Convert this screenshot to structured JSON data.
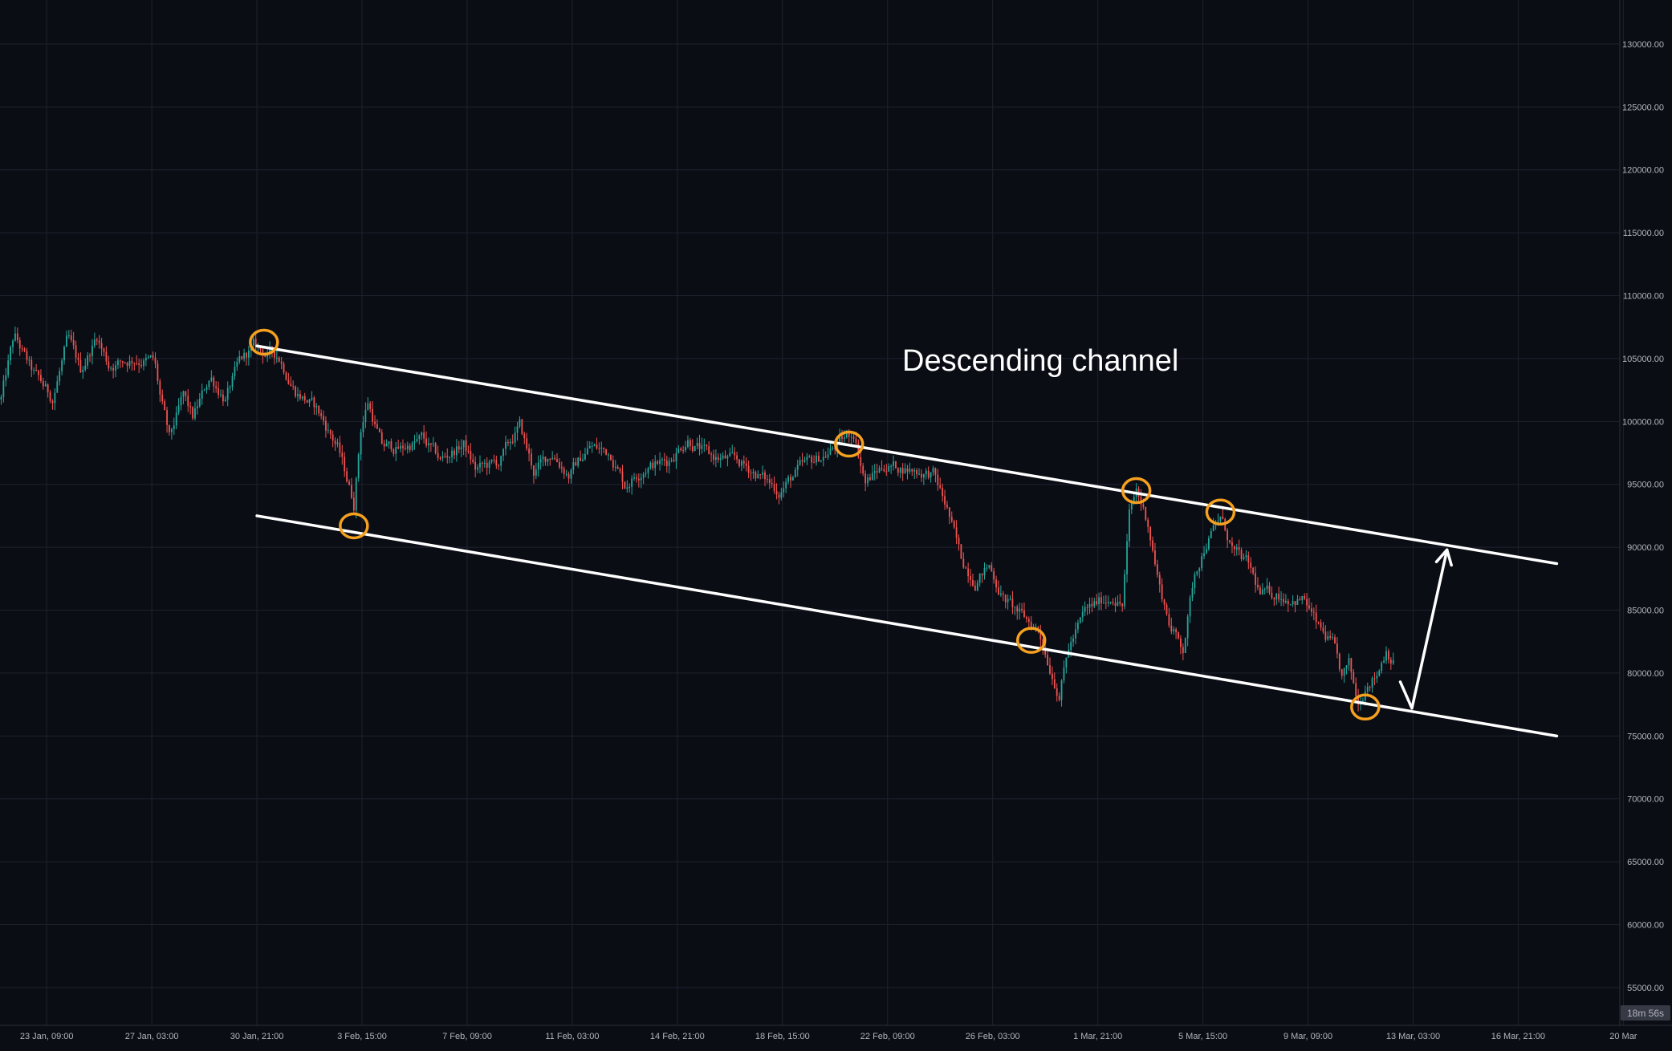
{
  "chart_data": {
    "type": "candlestick",
    "annotation_text": "Descending channel",
    "countdown": "18m 56s",
    "x_tick_labels": [
      "23 Jan, 09:00",
      "27 Jan, 03:00",
      "30 Jan, 21:00",
      "3 Feb, 15:00",
      "7 Feb, 09:00",
      "11 Feb, 03:00",
      "14 Feb, 21:00",
      "18 Feb, 15:00",
      "22 Feb, 09:00",
      "26 Feb, 03:00",
      "1 Mar, 21:00",
      "5 Mar, 15:00",
      "9 Mar, 09:00",
      "13 Mar, 03:00",
      "16 Mar, 21:00",
      "20 Mar"
    ],
    "y_tick_labels": [
      "130000.00",
      "125000.00",
      "120000.00",
      "115000.00",
      "110000.00",
      "105000.00",
      "100000.00",
      "95000.00",
      "90000.00",
      "85000.00",
      "80000.00",
      "75000.00",
      "70000.00",
      "65000.00",
      "60000.00",
      "55000.00"
    ],
    "y_ticks": [
      130000,
      125000,
      120000,
      115000,
      110000,
      105000,
      100000,
      95000,
      90000,
      85000,
      80000,
      75000,
      70000,
      65000,
      60000,
      55000
    ],
    "x_range": [
      "2025-01-21T17:00",
      "2025-03-20T12:00"
    ],
    "y_range": [
      52000,
      133500
    ],
    "grid": true,
    "colors": {
      "up": "#26a69a",
      "down": "#ef5350",
      "lines": "#ffffff",
      "markers": "#f5a11f",
      "background": "#0b0d15",
      "grid": "#1f222e"
    },
    "price_path": [
      [
        "2025-01-21T18:00",
        101800
      ],
      [
        "2025-01-22T05:00",
        106800
      ],
      [
        "2025-01-22T20:00",
        104000
      ],
      [
        "2025-01-23T14:00",
        101800
      ],
      [
        "2025-01-24T03:00",
        106500
      ],
      [
        "2025-01-24T14:00",
        104000
      ],
      [
        "2025-01-25T04:00",
        106800
      ],
      [
        "2025-01-25T14:00",
        104500
      ],
      [
        "2025-01-26T12:00",
        105000
      ],
      [
        "2025-01-27T05:00",
        104800
      ],
      [
        "2025-01-27T10:00",
        102000
      ],
      [
        "2025-01-27T18:00",
        98500
      ],
      [
        "2025-01-28T06:00",
        102000
      ],
      [
        "2025-01-28T14:00",
        100200
      ],
      [
        "2025-01-29T05:00",
        103600
      ],
      [
        "2025-01-29T18:00",
        101800
      ],
      [
        "2025-01-30T06:00",
        104600
      ],
      [
        "2025-01-30T18:00",
        105900
      ],
      [
        "2025-01-31T06:00",
        105300
      ],
      [
        "2025-01-31T15:00",
        105300
      ],
      [
        "2025-02-01T06:00",
        102500
      ],
      [
        "2025-02-02T00:00",
        101000
      ],
      [
        "2025-02-02T18:00",
        98000
      ],
      [
        "2025-02-03T08:00",
        93500
      ],
      [
        "2025-02-03T14:00",
        99500
      ],
      [
        "2025-02-03T20:00",
        101600
      ],
      [
        "2025-02-04T08:00",
        98000
      ],
      [
        "2025-02-05T00:00",
        97800
      ],
      [
        "2025-02-05T18:00",
        98600
      ],
      [
        "2025-02-06T10:00",
        96900
      ],
      [
        "2025-02-07T06:00",
        98200
      ],
      [
        "2025-02-07T16:00",
        96200
      ],
      [
        "2025-02-08T12:00",
        96700
      ],
      [
        "2025-02-09T06:00",
        99600
      ],
      [
        "2025-02-09T18:00",
        96000
      ],
      [
        "2025-02-10T10:00",
        97500
      ],
      [
        "2025-02-11T00:00",
        95800
      ],
      [
        "2025-02-11T18:00",
        98000
      ],
      [
        "2025-02-12T12:00",
        97500
      ],
      [
        "2025-02-13T00:00",
        95000
      ],
      [
        "2025-02-13T18:00",
        96500
      ],
      [
        "2025-02-14T12:00",
        96800
      ],
      [
        "2025-02-15T06:00",
        98700
      ],
      [
        "2025-02-16T00:00",
        97200
      ],
      [
        "2025-02-17T00:00",
        96800
      ],
      [
        "2025-02-17T18:00",
        95800
      ],
      [
        "2025-02-18T12:00",
        94500
      ],
      [
        "2025-02-19T06:00",
        96200
      ],
      [
        "2025-02-20T06:00",
        97500
      ],
      [
        "2025-02-21T04:00",
        99200
      ],
      [
        "2025-02-21T14:00",
        95200
      ],
      [
        "2025-02-22T06:00",
        96500
      ],
      [
        "2025-02-23T00:00",
        96300
      ],
      [
        "2025-02-24T00:00",
        95800
      ],
      [
        "2025-02-24T12:00",
        93000
      ],
      [
        "2025-02-25T00:00",
        89000
      ],
      [
        "2025-02-25T12:00",
        87500
      ],
      [
        "2025-02-26T00:00",
        88500
      ],
      [
        "2025-02-26T12:00",
        86000
      ],
      [
        "2025-02-27T06:00",
        84300
      ],
      [
        "2025-02-27T18:00",
        83500
      ],
      [
        "2025-02-28T06:00",
        80000
      ],
      [
        "2025-02-28T12:00",
        78500
      ],
      [
        "2025-02-28T20:00",
        82000
      ],
      [
        "2025-03-01T10:00",
        84800
      ],
      [
        "2025-03-01T20:00",
        85500
      ],
      [
        "2025-03-02T10:00",
        86200
      ],
      [
        "2025-03-02T18:00",
        85400
      ],
      [
        "2025-03-03T00:00",
        92500
      ],
      [
        "2025-03-03T06:00",
        94500
      ],
      [
        "2025-03-03T16:00",
        92000
      ],
      [
        "2025-03-04T02:00",
        86800
      ],
      [
        "2025-03-04T12:00",
        83500
      ],
      [
        "2025-03-04T22:00",
        82000
      ],
      [
        "2025-03-05T08:00",
        88000
      ],
      [
        "2025-03-05T18:00",
        90500
      ],
      [
        "2025-03-06T06:00",
        92300
      ],
      [
        "2025-03-06T18:00",
        89500
      ],
      [
        "2025-03-07T06:00",
        88500
      ],
      [
        "2025-03-07T16:00",
        86200
      ],
      [
        "2025-03-08T06:00",
        86300
      ],
      [
        "2025-03-08T18:00",
        86000
      ],
      [
        "2025-03-09T06:00",
        85800
      ],
      [
        "2025-03-09T18:00",
        83500
      ],
      [
        "2025-03-10T06:00",
        82200
      ],
      [
        "2025-03-10T14:00",
        79500
      ],
      [
        "2025-03-10T20:00",
        80500
      ],
      [
        "2025-03-11T04:00",
        77500
      ],
      [
        "2025-03-11T12:00",
        79500
      ],
      [
        "2025-03-11T20:00",
        80000
      ],
      [
        "2025-03-12T04:00",
        82000
      ],
      [
        "2025-03-12T10:00",
        81000
      ]
    ],
    "annotations": {
      "upper_channel_line": {
        "from": [
          "2025-01-30T21:00",
          106000
        ],
        "to": [
          "2025-03-18T06:00",
          88700
        ]
      },
      "lower_channel_line": {
        "from": [
          "2025-01-30T21:00",
          92500
        ],
        "to": [
          "2025-03-18T06:00",
          75000
        ]
      },
      "touch_points": [
        [
          "2025-01-31T03:00",
          106300
        ],
        [
          "2025-02-03T08:00",
          91700
        ],
        [
          "2025-02-21T00:00",
          98200
        ],
        [
          "2025-02-27T12:00",
          82600
        ],
        [
          "2025-03-03T06:00",
          94500
        ],
        [
          "2025-03-06T06:00",
          92800
        ],
        [
          "2025-03-11T10:00",
          77300
        ]
      ],
      "projection_path": [
        [
          "2025-03-12T16:00",
          79300
        ],
        [
          "2025-03-13T02:00",
          77200
        ],
        [
          "2025-03-14T08:00",
          89800
        ]
      ]
    }
  }
}
